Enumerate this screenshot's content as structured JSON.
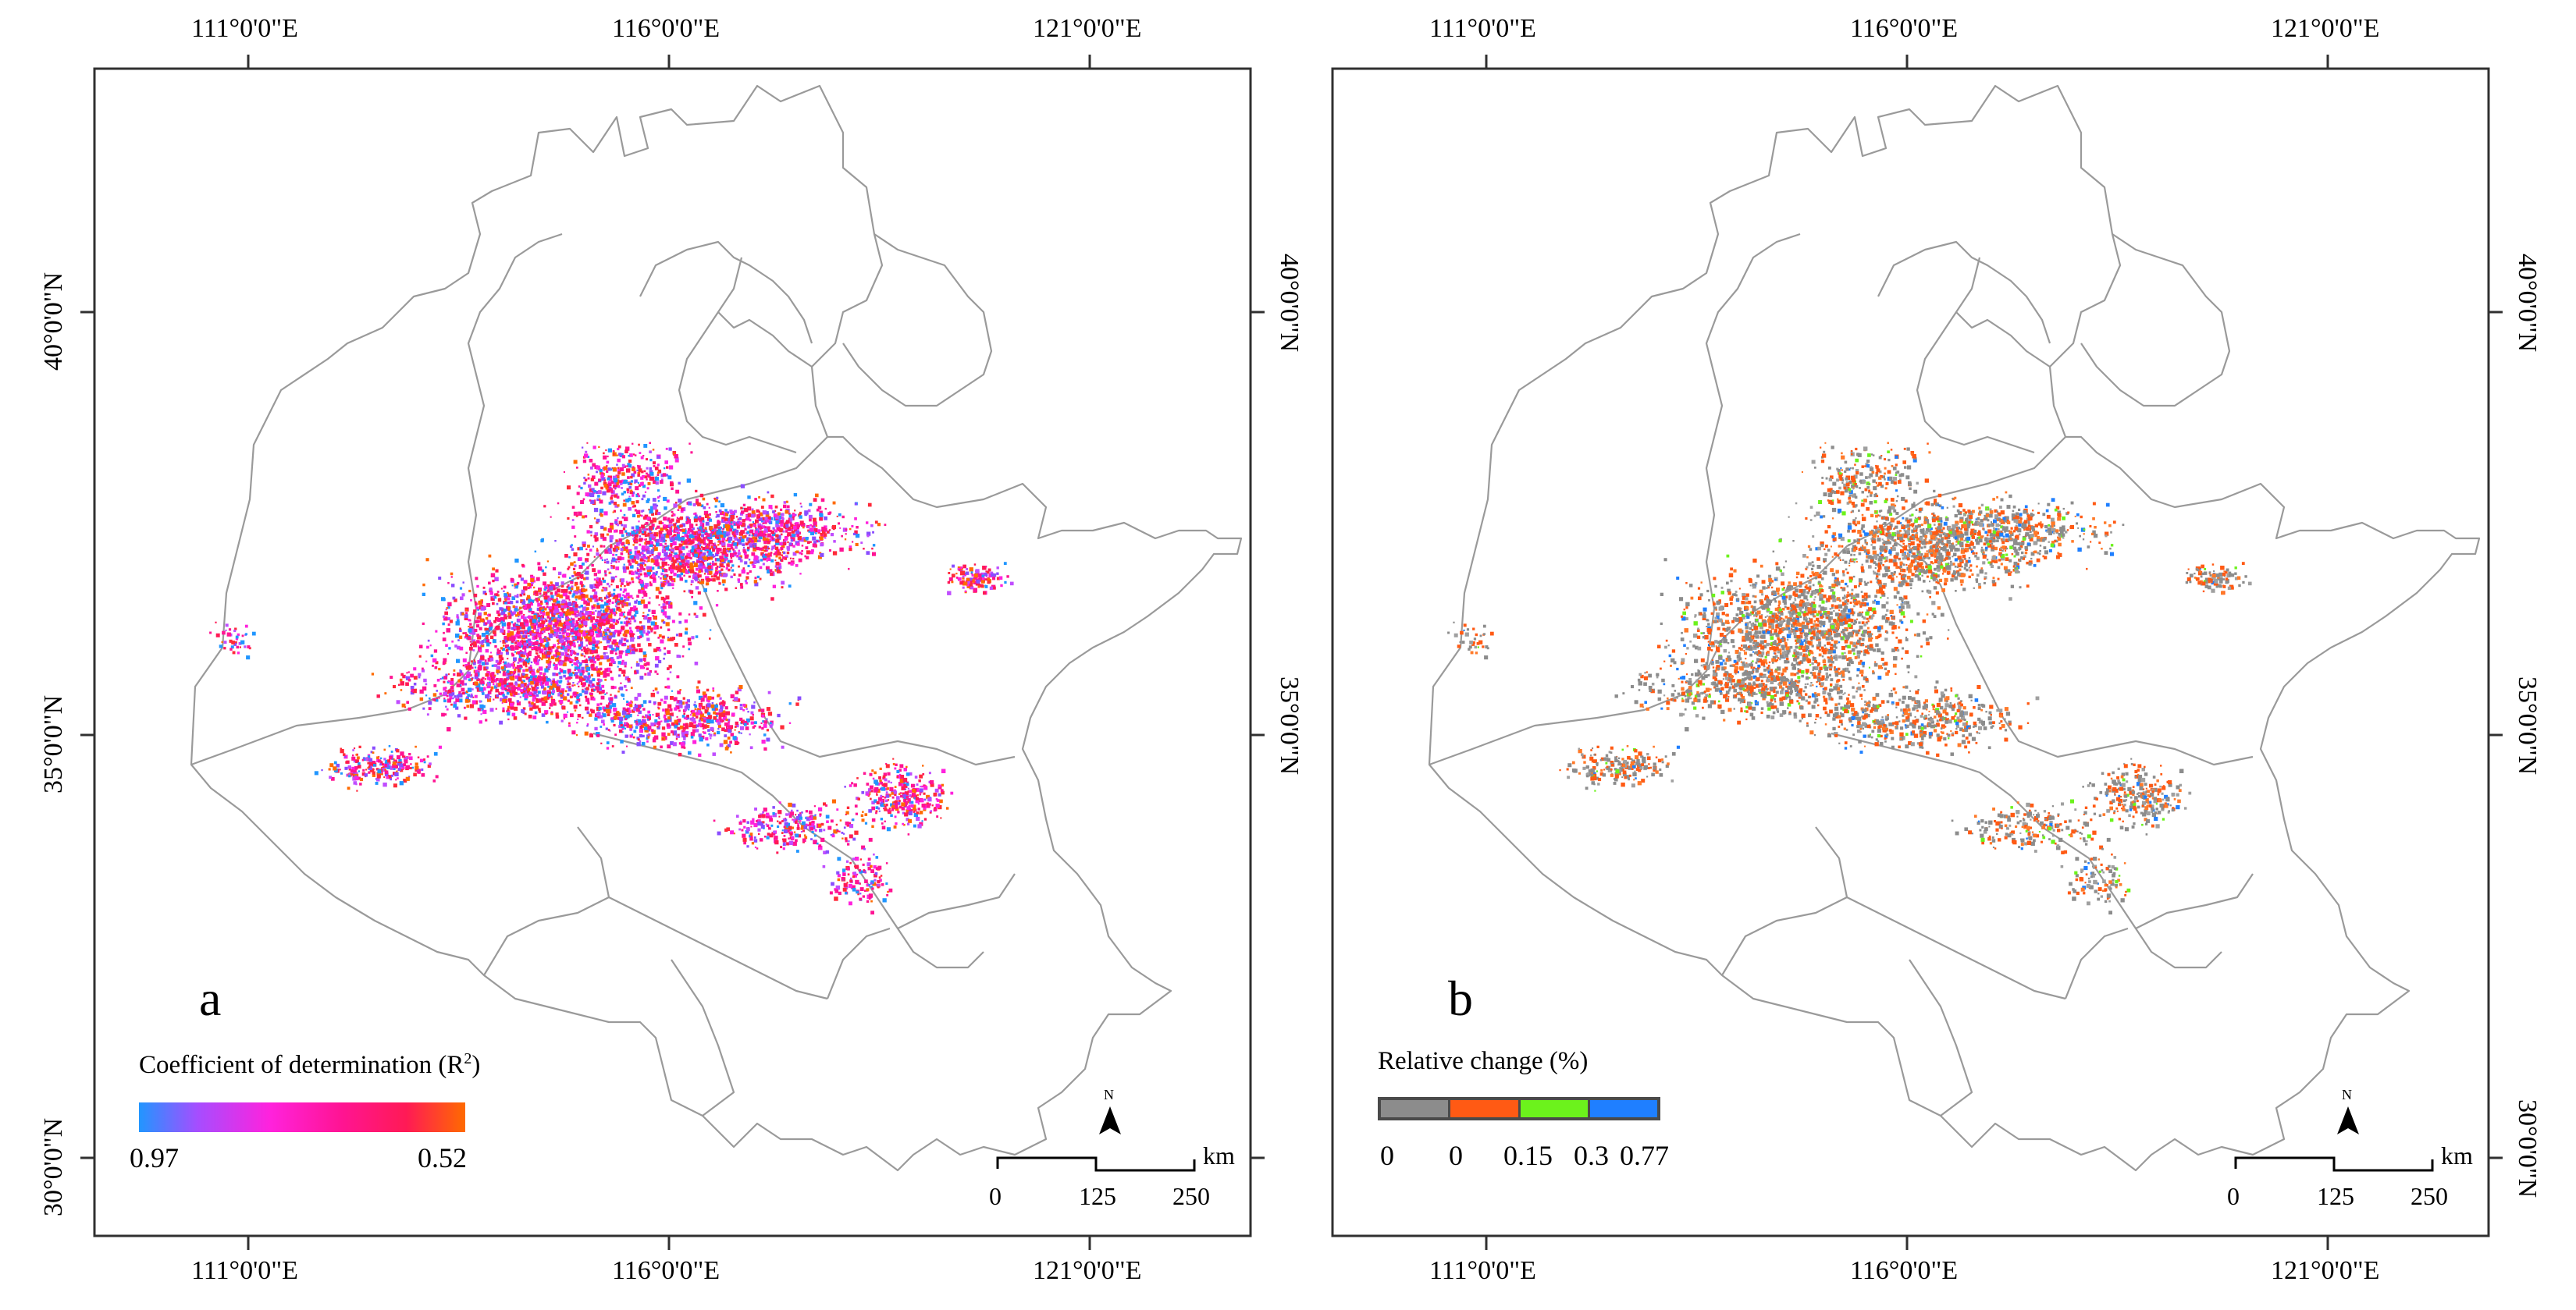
{
  "panels": [
    {
      "id": "a",
      "letter": "a",
      "lon_labels": [
        "111°0'0\"E",
        "116°0'0\"E",
        "121°0'0\"E"
      ],
      "lat_labels": [
        "40°0'0\"N",
        "35°0'0\"N",
        "30°0'0\"N"
      ],
      "legend": {
        "title": "Coefficient of determination (R",
        "title_sup": "2",
        "title_end": ")",
        "min_label": "0.97",
        "max_label": "0.52"
      },
      "scale": {
        "unit": "km",
        "ticks": [
          "0",
          "125",
          "250"
        ]
      },
      "north": "N"
    },
    {
      "id": "b",
      "letter": "b",
      "lon_labels": [
        "111°0'0\"E",
        "116°0'0\"E",
        "121°0'0\"E"
      ],
      "lat_labels": [
        "40°0'0\"N",
        "35°0'0\"N",
        "30°0'0\"N"
      ],
      "legend": {
        "title": "Relative change (%)",
        "classes": [
          "0",
          "0",
          "0.15",
          "0.3",
          "0.77"
        ],
        "class_colors": [
          "#8c8c8c",
          "#ff5a14",
          "#6cf21c",
          "#1f7fff"
        ]
      },
      "scale": {
        "unit": "km",
        "ticks": [
          "0",
          "125",
          "250"
        ]
      },
      "north": "N"
    }
  ],
  "colors": {
    "ramp": [
      "#2196ff",
      "#a64dff",
      "#ff22dd",
      "#ff1493",
      "#ff1a55",
      "#ff6a00"
    ]
  }
}
